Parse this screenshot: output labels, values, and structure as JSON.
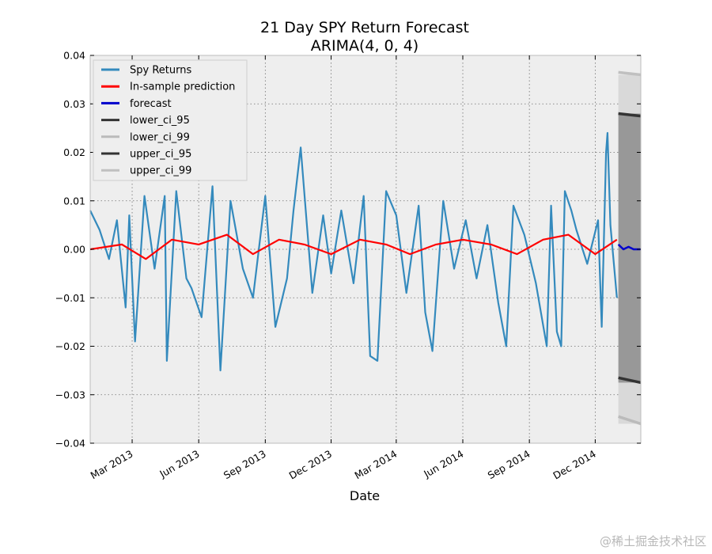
{
  "chart_data": {
    "type": "line",
    "title": "21 Day SPY Return Forecast",
    "subtitle": "ARIMA(4, 0, 4)",
    "xlabel": "Date",
    "ylabel": "",
    "x_range": [
      "2013-01-02",
      "2015-02-02"
    ],
    "ylim": [
      -0.04,
      0.04
    ],
    "yticks": [
      -0.04,
      -0.03,
      -0.02,
      -0.01,
      0.0,
      0.01,
      0.02,
      0.03,
      0.04
    ],
    "ytick_labels": [
      "−0.04",
      "−0.03",
      "−0.02",
      "−0.01",
      "0.00",
      "0.01",
      "0.02",
      "0.03",
      "0.04"
    ],
    "xticks": [
      {
        "date": "2013-03-01",
        "label": "Mar 2013"
      },
      {
        "date": "2013-06-01",
        "label": "Jun 2013"
      },
      {
        "date": "2013-09-01",
        "label": "Sep 2013"
      },
      {
        "date": "2013-12-01",
        "label": "Dec 2013"
      },
      {
        "date": "2014-03-01",
        "label": "Mar 2014"
      },
      {
        "date": "2014-06-01",
        "label": "Jun 2014"
      },
      {
        "date": "2014-09-01",
        "label": "Sep 2014"
      },
      {
        "date": "2014-12-01",
        "label": "Dec 2014"
      }
    ],
    "grid": true,
    "legend_position": "top-left",
    "series": [
      {
        "name": "Spy Returns",
        "color": "#348abd",
        "x": [
          "2013-01-02",
          "2013-01-15",
          "2013-01-28",
          "2013-02-08",
          "2013-02-20",
          "2013-02-25",
          "2013-03-05",
          "2013-03-18",
          "2013-04-01",
          "2013-04-15",
          "2013-04-18",
          "2013-05-01",
          "2013-05-15",
          "2013-05-22",
          "2013-06-05",
          "2013-06-20",
          "2013-07-01",
          "2013-07-15",
          "2013-08-01",
          "2013-08-15",
          "2013-09-01",
          "2013-09-15",
          "2013-10-01",
          "2013-10-10",
          "2013-10-20",
          "2013-11-05",
          "2013-11-20",
          "2013-12-01",
          "2013-12-15",
          "2014-01-01",
          "2014-01-15",
          "2014-01-24",
          "2014-02-03",
          "2014-02-15",
          "2014-03-01",
          "2014-03-15",
          "2014-04-01",
          "2014-04-10",
          "2014-04-20",
          "2014-05-05",
          "2014-05-20",
          "2014-06-05",
          "2014-06-20",
          "2014-07-05",
          "2014-07-20",
          "2014-07-31",
          "2014-08-10",
          "2014-08-25",
          "2014-09-10",
          "2014-09-25",
          "2014-10-01",
          "2014-10-09",
          "2014-10-15",
          "2014-10-20",
          "2014-10-29",
          "2014-11-05",
          "2014-11-20",
          "2014-12-05",
          "2014-12-10",
          "2014-12-16",
          "2014-12-18",
          "2014-12-22",
          "2014-12-31"
        ],
        "values": [
          0.008,
          0.004,
          -0.002,
          0.006,
          -0.012,
          0.007,
          -0.019,
          0.011,
          -0.004,
          0.011,
          -0.023,
          0.012,
          -0.006,
          -0.008,
          -0.014,
          0.013,
          -0.025,
          0.01,
          -0.004,
          -0.01,
          0.011,
          -0.016,
          -0.006,
          0.008,
          0.021,
          -0.009,
          0.007,
          -0.005,
          0.008,
          -0.007,
          0.011,
          -0.022,
          -0.023,
          0.012,
          0.007,
          -0.009,
          0.009,
          -0.013,
          -0.021,
          0.01,
          -0.004,
          0.006,
          -0.006,
          0.005,
          -0.011,
          -0.02,
          0.009,
          0.003,
          -0.007,
          -0.02,
          0.009,
          -0.017,
          -0.02,
          0.012,
          0.008,
          0.004,
          -0.003,
          0.006,
          -0.016,
          0.02,
          0.024,
          0.005,
          -0.01
        ]
      },
      {
        "name": "In-sample prediction",
        "color": "#ff0000",
        "x": [
          "2013-01-02",
          "2013-02-15",
          "2013-03-20",
          "2013-04-25",
          "2013-06-01",
          "2013-07-10",
          "2013-08-15",
          "2013-09-20",
          "2013-10-25",
          "2013-12-01",
          "2014-01-10",
          "2014-02-15",
          "2014-03-20",
          "2014-04-25",
          "2014-06-01",
          "2014-07-10",
          "2014-08-15",
          "2014-09-20",
          "2014-10-25",
          "2014-12-01",
          "2014-12-31"
        ],
        "values": [
          0.0,
          0.001,
          -0.002,
          0.002,
          0.001,
          0.003,
          -0.001,
          0.002,
          0.001,
          -0.001,
          0.002,
          0.001,
          -0.001,
          0.001,
          0.002,
          0.001,
          -0.001,
          0.002,
          0.003,
          -0.001,
          0.002
        ]
      },
      {
        "name": "forecast",
        "color": "#0000cc",
        "x": [
          "2015-01-02",
          "2015-01-09",
          "2015-01-16",
          "2015-01-23",
          "2015-02-02"
        ],
        "values": [
          0.001,
          0.0,
          0.0005,
          0.0,
          0.0
        ]
      },
      {
        "name": "lower_ci_95",
        "color": "#333333",
        "x": [
          "2015-01-02",
          "2015-02-02"
        ],
        "values": [
          -0.0265,
          -0.0275
        ]
      },
      {
        "name": "lower_ci_99",
        "color": "#bbbbbb",
        "x": [
          "2015-01-02",
          "2015-02-02"
        ],
        "values": [
          -0.0345,
          -0.036
        ]
      },
      {
        "name": "upper_ci_95",
        "color": "#333333",
        "x": [
          "2015-01-02",
          "2015-02-02"
        ],
        "values": [
          0.028,
          0.0275
        ]
      },
      {
        "name": "upper_ci_99",
        "color": "#c0c0c0",
        "x": [
          "2015-01-02",
          "2015-02-02"
        ],
        "values": [
          0.0365,
          0.036
        ]
      }
    ],
    "bands": [
      {
        "name": "ci_99",
        "x_start": "2015-01-02",
        "x_end": "2015-02-02",
        "lower": -0.036,
        "upper": 0.036,
        "color": "#d9d9d9"
      },
      {
        "name": "ci_95",
        "x_start": "2015-01-02",
        "x_end": "2015-02-02",
        "lower": -0.0275,
        "upper": 0.028,
        "color": "#989898"
      }
    ]
  },
  "watermark": "@稀土掘金技术社区"
}
